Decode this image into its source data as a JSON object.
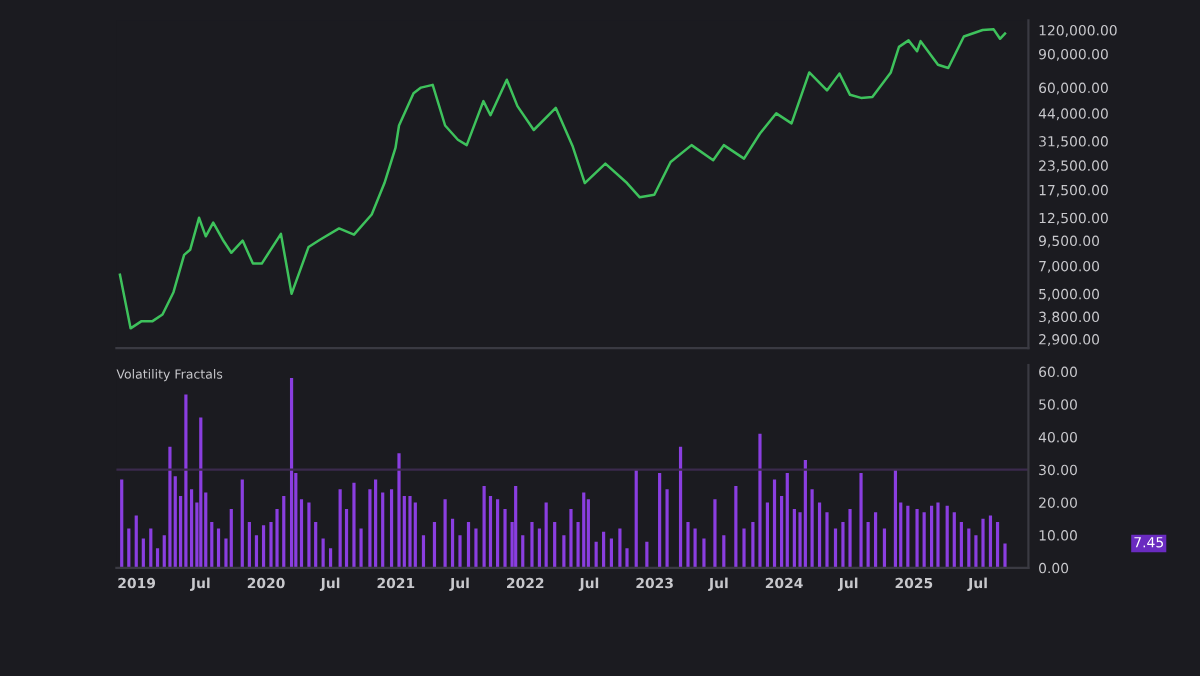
{
  "chart_data": [
    {
      "type": "line",
      "log": "y",
      "tick_labels": "y",
      "grid": false,
      "xlim": [
        "2018-11-05",
        "2025-11-20"
      ],
      "ylim": [
        2600,
        135000
      ],
      "yticks": [
        {
          "value": 2900,
          "label": "2,900.00"
        },
        {
          "value": 3800,
          "label": "3,800.00"
        },
        {
          "value": 5000,
          "label": "5,000.00"
        },
        {
          "value": 7000,
          "label": "7,000.00"
        },
        {
          "value": 9500,
          "label": "9,500.00"
        },
        {
          "value": 12500,
          "label": "12,500.00"
        },
        {
          "value": 17500,
          "label": "17,500.00"
        },
        {
          "value": 23500,
          "label": "23,500.00"
        },
        {
          "value": 31500,
          "label": "31,500.00"
        },
        {
          "value": 44000,
          "label": "44,000.00"
        },
        {
          "value": 60000,
          "label": "60,000.00"
        },
        {
          "value": 90000,
          "label": "90,000.00"
        },
        {
          "value": 120000,
          "label": "120,000.00"
        }
      ],
      "series": [
        {
          "color": "#3ec25c",
          "x": [
            "2018-11-15",
            "2018-12-15",
            "2019-01-15",
            "2019-02-15",
            "2019-03-15",
            "2019-04-15",
            "2019-05-15",
            "2019-06-01",
            "2019-06-26",
            "2019-07-15",
            "2019-08-05",
            "2019-09-01",
            "2019-09-25",
            "2019-10-27",
            "2019-11-25",
            "2019-12-20",
            "2020-02-12",
            "2020-03-13",
            "2020-04-30",
            "2020-06-01",
            "2020-07-25",
            "2020-09-05",
            "2020-10-25",
            "2020-11-30",
            "2020-12-31",
            "2021-01-10",
            "2021-02-20",
            "2021-03-13",
            "2021-04-15",
            "2021-05-20",
            "2021-06-25",
            "2021-07-20",
            "2021-09-05",
            "2021-09-25",
            "2021-11-10",
            "2021-12-10",
            "2022-01-25",
            "2022-03-28",
            "2022-05-15",
            "2022-06-18",
            "2022-08-15",
            "2022-10-15",
            "2022-11-20",
            "2022-12-31",
            "2023-02-15",
            "2023-04-15",
            "2023-06-15",
            "2023-07-15",
            "2023-09-10",
            "2023-10-25",
            "2023-12-10",
            "2024-01-22",
            "2024-03-12",
            "2024-05-01",
            "2024-06-05",
            "2024-07-05",
            "2024-08-05",
            "2024-09-06",
            "2024-10-28",
            "2024-11-20",
            "2024-12-17",
            "2025-01-10",
            "2025-01-20",
            "2025-03-10",
            "2025-04-08",
            "2025-05-22",
            "2025-07-14",
            "2025-08-14",
            "2025-09-01",
            "2025-09-15"
          ],
          "values": [
            6300,
            3300,
            3600,
            3600,
            3900,
            5100,
            8000,
            8500,
            12500,
            10000,
            11800,
            9600,
            8200,
            9500,
            7200,
            7200,
            10300,
            5000,
            8800,
            9600,
            11000,
            10200,
            13000,
            19000,
            29000,
            38000,
            56000,
            60000,
            62000,
            38000,
            32000,
            30000,
            51000,
            43000,
            66000,
            48000,
            36000,
            47000,
            29500,
            19000,
            24000,
            19000,
            16000,
            16500,
            24500,
            30000,
            25000,
            30000,
            25500,
            34500,
            44000,
            39000,
            72000,
            58000,
            71000,
            55000,
            53000,
            53500,
            72000,
            98000,
            106000,
            93000,
            105000,
            79000,
            76000,
            111000,
            120000,
            121000,
            108000,
            115000
          ]
        }
      ]
    },
    {
      "type": "bar",
      "title": "Volatility Fractals",
      "grid": false,
      "xlim": [
        "2018-11-05",
        "2025-11-20"
      ],
      "xticks": [
        {
          "value": "2019-01-01",
          "label": "2019"
        },
        {
          "value": "2019-07-01",
          "label": "Jul"
        },
        {
          "value": "2020-01-01",
          "label": "2020"
        },
        {
          "value": "2020-07-01",
          "label": "Jul"
        },
        {
          "value": "2021-01-01",
          "label": "2021"
        },
        {
          "value": "2021-07-01",
          "label": "Jul"
        },
        {
          "value": "2022-01-01",
          "label": "2022"
        },
        {
          "value": "2022-07-01",
          "label": "Jul"
        },
        {
          "value": "2023-01-01",
          "label": "2023"
        },
        {
          "value": "2023-07-01",
          "label": "Jul"
        },
        {
          "value": "2024-01-01",
          "label": "2024"
        },
        {
          "value": "2024-07-01",
          "label": "Jul"
        },
        {
          "value": "2025-01-01",
          "label": "2025"
        },
        {
          "value": "2025-07-01",
          "label": "Jul"
        }
      ],
      "ylim": [
        0,
        62
      ],
      "yticks": [
        {
          "value": 0,
          "label": "0.00"
        },
        {
          "value": 10,
          "label": "10.00"
        },
        {
          "value": 20,
          "label": "20.00"
        },
        {
          "value": 30,
          "label": "30.00"
        },
        {
          "value": 40,
          "label": "40.00"
        },
        {
          "value": 50,
          "label": "50.00"
        },
        {
          "value": 60,
          "label": "60.00"
        }
      ],
      "ref_lines": [
        {
          "axis": "y",
          "value": 30,
          "color": "#3b2a4d"
        }
      ],
      "annotations": [
        "7.45"
      ],
      "series": [
        {
          "color": "#8a3ee0",
          "x": [
            "2018-11-20",
            "2018-12-10",
            "2018-12-31",
            "2019-01-20",
            "2019-02-10",
            "2019-03-01",
            "2019-03-20",
            "2019-04-05",
            "2019-04-20",
            "2019-05-05",
            "2019-05-20",
            "2019-06-05",
            "2019-06-20",
            "2019-07-01",
            "2019-07-15",
            "2019-08-01",
            "2019-08-20",
            "2019-09-10",
            "2019-09-25",
            "2019-10-26",
            "2019-11-15",
            "2019-12-05",
            "2019-12-25",
            "2020-01-15",
            "2020-02-01",
            "2020-02-20",
            "2020-03-13",
            "2020-03-25",
            "2020-04-10",
            "2020-05-01",
            "2020-05-20",
            "2020-06-10",
            "2020-07-01",
            "2020-07-28",
            "2020-08-15",
            "2020-09-05",
            "2020-09-25",
            "2020-10-20",
            "2020-11-05",
            "2020-11-25",
            "2020-12-20",
            "2021-01-10",
            "2021-01-25",
            "2021-02-10",
            "2021-02-25",
            "2021-03-20",
            "2021-04-20",
            "2021-05-20",
            "2021-06-10",
            "2021-07-01",
            "2021-07-25",
            "2021-08-15",
            "2021-09-07",
            "2021-09-25",
            "2021-10-15",
            "2021-11-05",
            "2021-11-25",
            "2021-12-05",
            "2021-12-25",
            "2022-01-20",
            "2022-02-10",
            "2022-03-01",
            "2022-03-25",
            "2022-04-20",
            "2022-05-10",
            "2022-05-30",
            "2022-06-15",
            "2022-06-28",
            "2022-07-20",
            "2022-08-10",
            "2022-09-01",
            "2022-09-25",
            "2022-10-15",
            "2022-11-10",
            "2022-12-10",
            "2023-01-15",
            "2023-02-05",
            "2023-03-15",
            "2023-04-05",
            "2023-04-25",
            "2023-05-20",
            "2023-06-20",
            "2023-07-15",
            "2023-08-18",
            "2023-09-10",
            "2023-10-05",
            "2023-10-25",
            "2023-11-15",
            "2023-12-05",
            "2023-12-25",
            "2024-01-10",
            "2024-01-30",
            "2024-02-15",
            "2024-03-01",
            "2024-03-20",
            "2024-04-10",
            "2024-05-01",
            "2024-05-25",
            "2024-06-15",
            "2024-07-05",
            "2024-08-05",
            "2024-08-25",
            "2024-09-15",
            "2024-10-10",
            "2024-11-10",
            "2024-11-25",
            "2024-12-15",
            "2025-01-10",
            "2025-01-30",
            "2025-02-20",
            "2025-03-10",
            "2025-04-05",
            "2025-04-25",
            "2025-05-15",
            "2025-06-05",
            "2025-06-25",
            "2025-07-15",
            "2025-08-05",
            "2025-08-25",
            "2025-09-15"
          ],
          "values": [
            27,
            12,
            16,
            9,
            12,
            6,
            10,
            37,
            28,
            22,
            53,
            24,
            20,
            46,
            23,
            14,
            12,
            9,
            18,
            27,
            14,
            10,
            13,
            14,
            18,
            22,
            58,
            29,
            21,
            20,
            14,
            9,
            6,
            24,
            18,
            26,
            12,
            24,
            27,
            23,
            24,
            35,
            22,
            22,
            20,
            10,
            14,
            21,
            15,
            10,
            14,
            12,
            25,
            22,
            21,
            18,
            14,
            25,
            10,
            14,
            12,
            20,
            14,
            10,
            18,
            14,
            23,
            21,
            8,
            11,
            9,
            12,
            6,
            30,
            8,
            29,
            24,
            37,
            14,
            12,
            9,
            21,
            10,
            25,
            12,
            14,
            41,
            20,
            27,
            22,
            29,
            18,
            17,
            33,
            24,
            20,
            17,
            12,
            14,
            18,
            29,
            14,
            17,
            12,
            30,
            20,
            19,
            18,
            17,
            19,
            20,
            19,
            17,
            14,
            12,
            10,
            15,
            16,
            14,
            7.45
          ]
        }
      ]
    }
  ]
}
